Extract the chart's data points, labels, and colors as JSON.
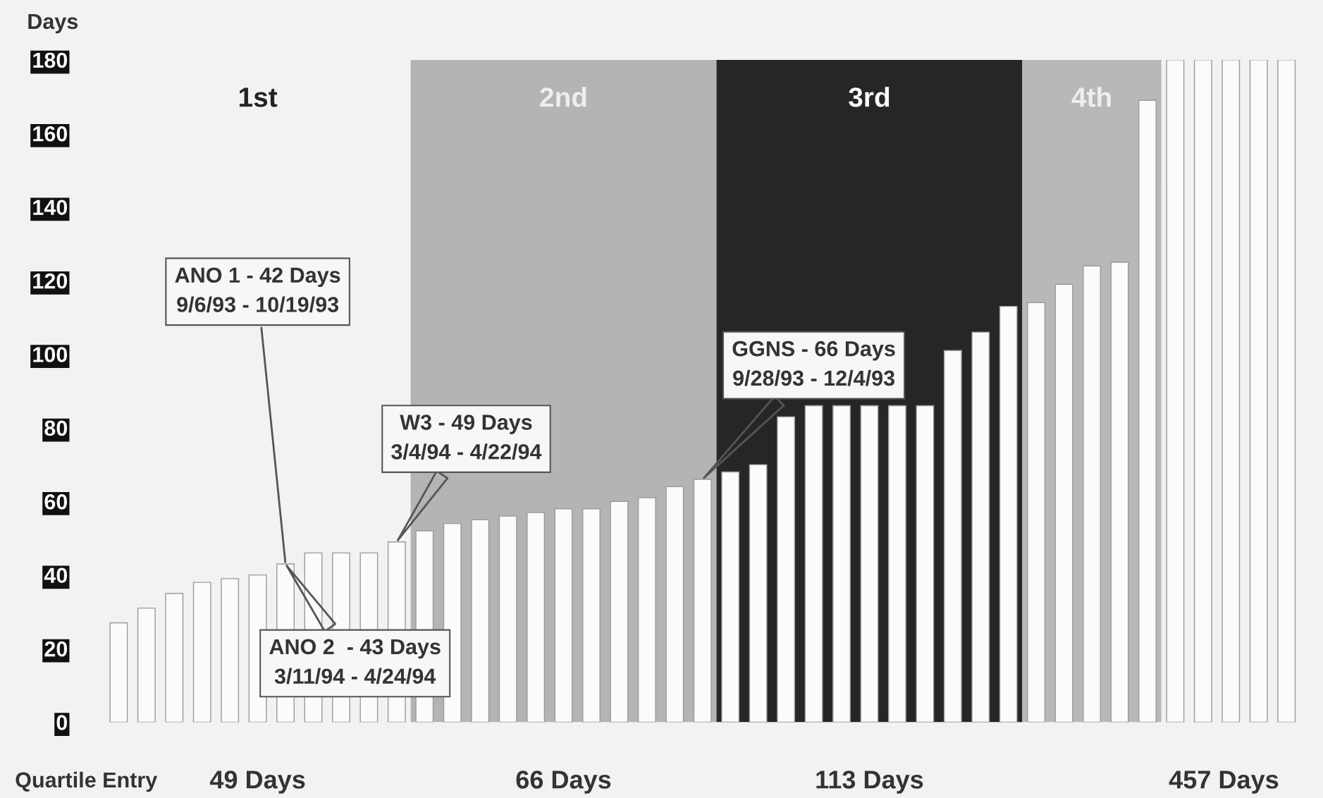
{
  "chart_data": {
    "type": "bar",
    "ylabel": "Days",
    "categories": [
      null,
      null,
      null,
      null,
      null,
      null,
      null,
      null,
      null,
      null,
      null,
      null,
      null,
      null,
      null,
      null,
      null,
      null,
      null,
      null,
      null,
      null,
      null,
      null,
      null,
      null,
      null,
      null,
      null,
      null,
      null,
      null,
      null,
      null,
      null,
      null,
      null,
      null,
      null,
      null,
      null,
      null,
      null
    ],
    "values": [
      27,
      31,
      35,
      38,
      39,
      40,
      43,
      46,
      46,
      46,
      49,
      52,
      54,
      55,
      56,
      57,
      58,
      58,
      60,
      61,
      64,
      66,
      68,
      70,
      83,
      86,
      86,
      86,
      86,
      86,
      101,
      106,
      113,
      114,
      119,
      124,
      125,
      169,
      180,
      180,
      180,
      180,
      180
    ],
    "color": "#fbfbfb",
    "ylim": [
      0,
      180
    ],
    "yticks": [
      0,
      20,
      40,
      60,
      80,
      100,
      120,
      140,
      160,
      180
    ],
    "annotations": [
      "1st",
      "2nd",
      "3rd",
      "4th",
      "ANO 1 - 42 Days\n9/6/93 - 10/19/93",
      "ANO 2  - 43 Days\n3/11/94 - 4/24/94",
      "W3 - 49 Days\n3/4/94 - 4/22/94",
      "GGNS - 66 Days\n9/28/93 - 12/4/93",
      "Quartile Entry",
      "49 Days",
      "66 Days",
      "113 Days",
      "457 Days"
    ],
    "grid": false
  }
}
